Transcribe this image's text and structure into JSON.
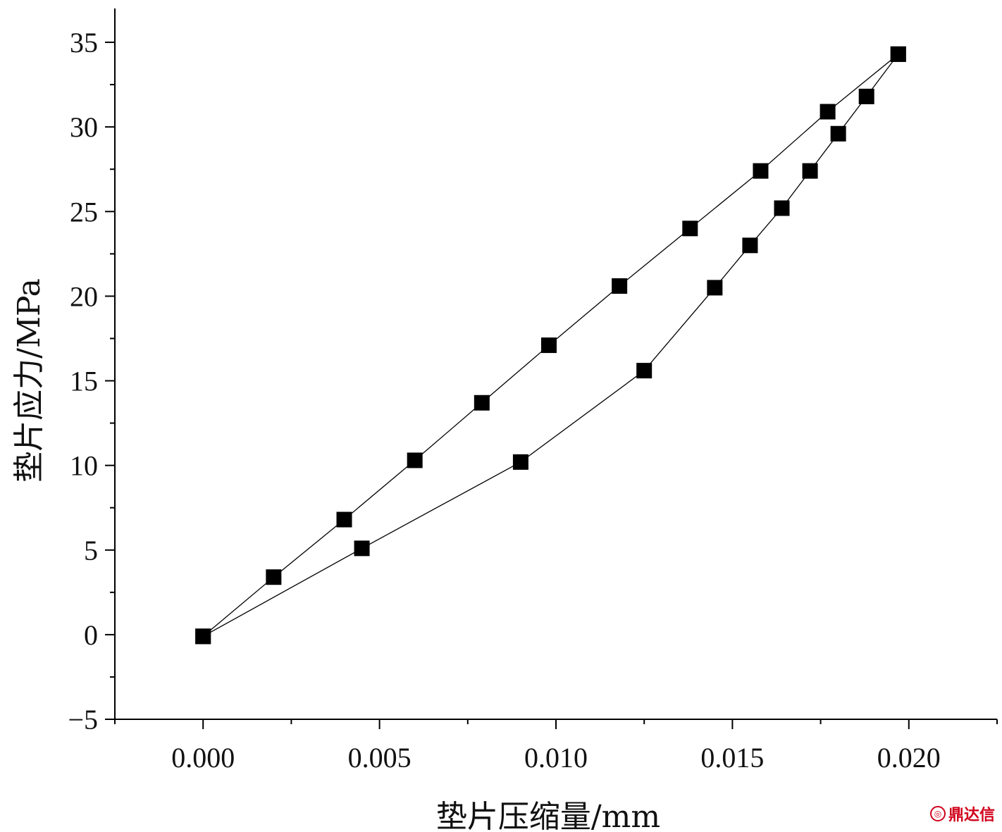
{
  "chart_data": {
    "type": "line",
    "xlabel": "垫片压缩量/mm",
    "ylabel": "垫片应力/MPa",
    "xlim": [
      -0.0025,
      0.0225
    ],
    "ylim": [
      -5,
      37
    ],
    "x_ticks": [
      "0.000",
      "0.005",
      "0.010",
      "0.015",
      "0.020"
    ],
    "y_ticks": [
      "−5",
      "0",
      "5",
      "10",
      "15",
      "20",
      "25",
      "30",
      "35"
    ],
    "grid": false,
    "marker": "square",
    "series": [
      {
        "points": [
          [
            0.0,
            -0.1
          ],
          [
            0.002,
            3.4
          ],
          [
            0.004,
            6.8
          ],
          [
            0.006,
            10.3
          ],
          [
            0.0079,
            13.7
          ],
          [
            0.0098,
            17.1
          ],
          [
            0.0118,
            20.6
          ],
          [
            0.0138,
            24.0
          ],
          [
            0.0158,
            27.4
          ],
          [
            0.0177,
            30.9
          ],
          [
            0.0197,
            34.3
          ]
        ]
      },
      {
        "points": [
          [
            0.0,
            -0.1
          ],
          [
            0.0045,
            5.1
          ],
          [
            0.009,
            10.2
          ],
          [
            0.0125,
            15.6
          ],
          [
            0.0145,
            20.5
          ],
          [
            0.0155,
            23.0
          ],
          [
            0.0164,
            25.2
          ],
          [
            0.0172,
            27.4
          ],
          [
            0.018,
            29.6
          ],
          [
            0.0188,
            31.8
          ],
          [
            0.0197,
            34.3
          ]
        ]
      }
    ]
  },
  "watermark": {
    "text": "鼎达信"
  }
}
